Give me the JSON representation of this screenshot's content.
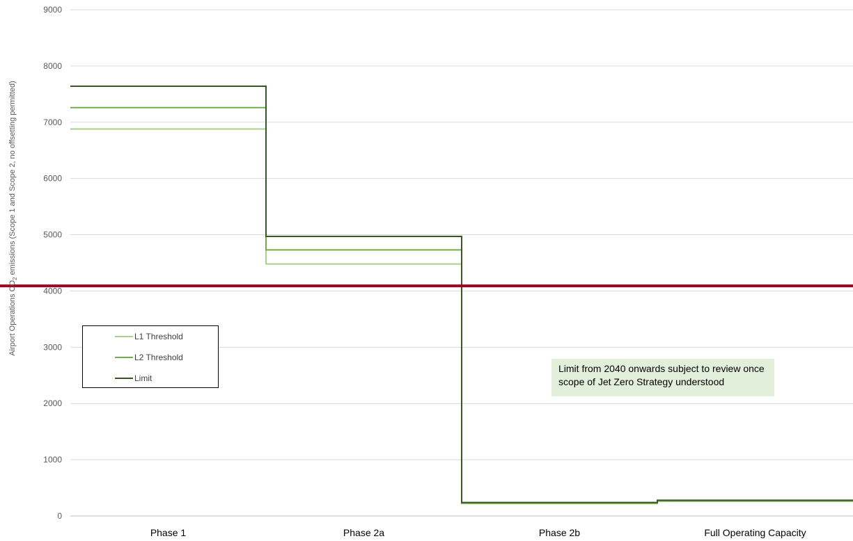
{
  "chart_data": {
    "type": "line",
    "style": "step",
    "categories": [
      "Phase 1",
      "Phase 2a",
      "Phase 2b",
      "Full Operating Capacity"
    ],
    "ylabel_parts": [
      "Airport Operations CO",
      "2",
      " emissions (Scope 1 and Scope 2, no offsetting permitted)"
    ],
    "ylim": [
      0,
      9000
    ],
    "yticks": [
      0,
      1000,
      2000,
      3000,
      4000,
      5000,
      6000,
      7000,
      8000,
      9000
    ],
    "grid": true,
    "series": [
      {
        "name": "L1 Threshold",
        "color": "#a9d18e",
        "values": [
          6880,
          4480,
          220,
          260
        ]
      },
      {
        "name": "L2 Threshold",
        "color": "#70ad47",
        "values": [
          7260,
          4730,
          230,
          270
        ]
      },
      {
        "name": "Limit",
        "color": "#375623",
        "values": [
          7640,
          4970,
          240,
          280
        ]
      }
    ],
    "reference_line": {
      "value": 4090,
      "color": "#a50021"
    },
    "legend_position": "left",
    "annotation": "Limit from 2040 onwards subject to review once scope of Jet Zero Strategy understood"
  }
}
